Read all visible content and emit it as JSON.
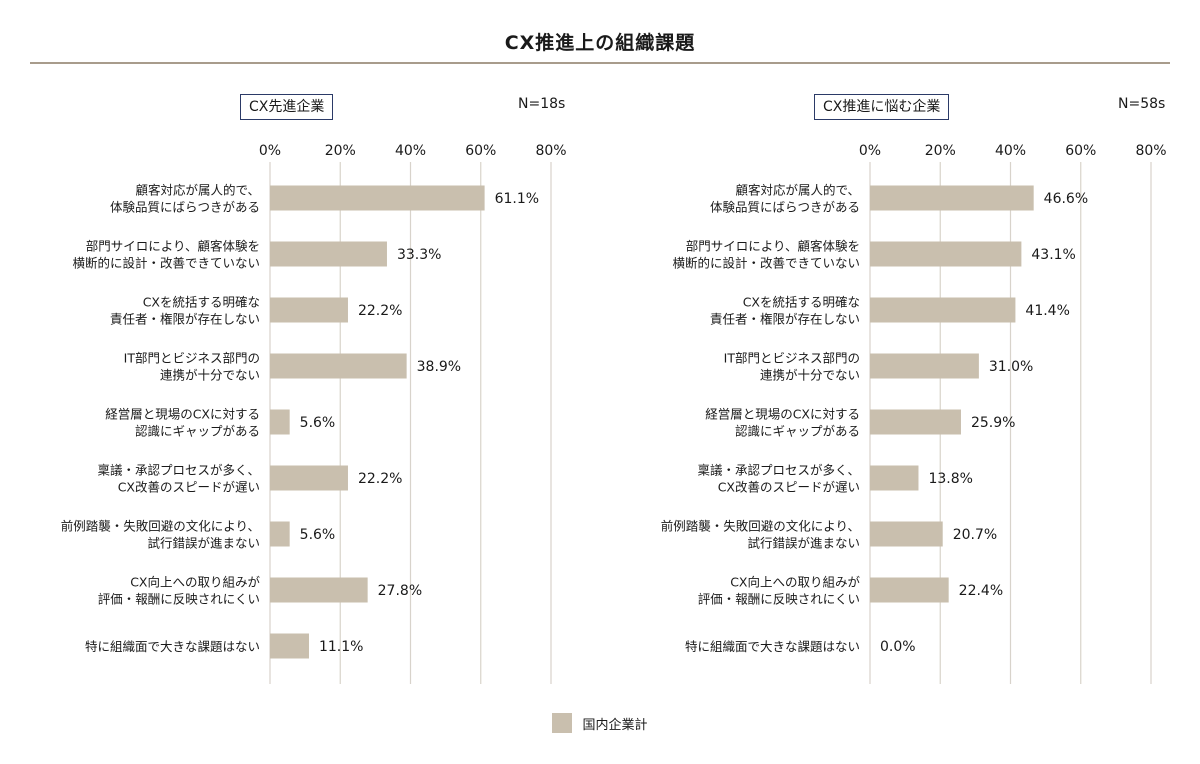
{
  "title": "CX推進上の組織課題",
  "legend": {
    "label": "国内企業計",
    "color": "#c9bfae"
  },
  "colors": {
    "bar": "#c9bfae",
    "grid": "#d8d3cb",
    "frame": "#2b3a67",
    "rule": "#a89c8c"
  },
  "chart_data": [
    {
      "type": "bar",
      "orientation": "horizontal",
      "panel_label": "CX先進企業",
      "n_label": "N=18s",
      "xlim": [
        0,
        80
      ],
      "ticks": [
        "0%",
        "20%",
        "40%",
        "60%",
        "80%"
      ],
      "tick_values": [
        0,
        20,
        40,
        60,
        80
      ],
      "categories": [
        [
          "顧客対応が属人的で、",
          "体験品質にばらつきがある"
        ],
        [
          "部門サイロにより、顧客体験を",
          "横断的に設計・改善できていない"
        ],
        [
          "CXを統括する明確な",
          "責任者・権限が存在しない"
        ],
        [
          "IT部門とビジネス部門の",
          "連携が十分でない"
        ],
        [
          "経営層と現場のCXに対する",
          "認識にギャップがある"
        ],
        [
          "稟議・承認プロセスが多く、",
          "CX改善のスピードが遅い"
        ],
        [
          "前例踏襲・失敗回避の文化により、",
          "試行錯誤が進まない"
        ],
        [
          "CX向上への取り組みが",
          "評価・報酬に反映されにくい"
        ],
        [
          "特に組織面で大きな課題はない"
        ]
      ],
      "series": [
        {
          "name": "国内企業計",
          "values": [
            61.1,
            33.3,
            22.2,
            38.9,
            5.6,
            22.2,
            5.6,
            27.8,
            11.1
          ]
        }
      ],
      "value_labels": [
        "61.1%",
        "33.3%",
        "22.2%",
        "38.9%",
        "5.6%",
        "22.2%",
        "5.6%",
        "27.8%",
        "11.1%"
      ]
    },
    {
      "type": "bar",
      "orientation": "horizontal",
      "panel_label": "CX推進に悩む企業",
      "n_label": "N=58s",
      "xlim": [
        0,
        80
      ],
      "ticks": [
        "0%",
        "20%",
        "40%",
        "60%",
        "80%"
      ],
      "tick_values": [
        0,
        20,
        40,
        60,
        80
      ],
      "categories": [
        [
          "顧客対応が属人的で、",
          "体験品質にばらつきがある"
        ],
        [
          "部門サイロにより、顧客体験を",
          "横断的に設計・改善できていない"
        ],
        [
          "CXを統括する明確な",
          "責任者・権限が存在しない"
        ],
        [
          "IT部門とビジネス部門の",
          "連携が十分でない"
        ],
        [
          "経営層と現場のCXに対する",
          "認識にギャップがある"
        ],
        [
          "稟議・承認プロセスが多く、",
          "CX改善のスピードが遅い"
        ],
        [
          "前例踏襲・失敗回避の文化により、",
          "試行錯誤が進まない"
        ],
        [
          "CX向上への取り組みが",
          "評価・報酬に反映されにくい"
        ],
        [
          "特に組織面で大きな課題はない"
        ]
      ],
      "series": [
        {
          "name": "国内企業計",
          "values": [
            46.6,
            43.1,
            41.4,
            31.0,
            25.9,
            13.8,
            20.7,
            22.4,
            0.0
          ]
        }
      ],
      "value_labels": [
        "46.6%",
        "43.1%",
        "41.4%",
        "31.0%",
        "25.9%",
        "13.8%",
        "20.7%",
        "22.4%",
        "0.0%"
      ]
    }
  ]
}
